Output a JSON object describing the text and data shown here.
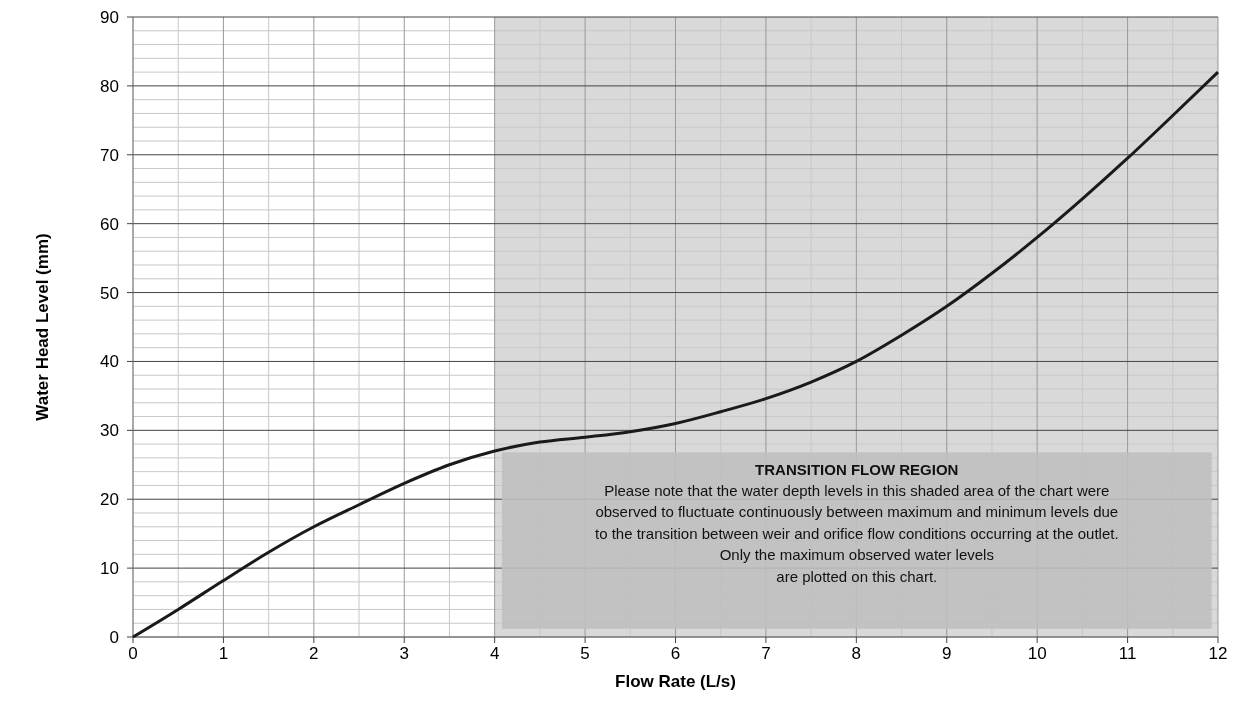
{
  "chart_data": {
    "type": "line",
    "xlabel": "Flow Rate (L/s)",
    "ylabel": "Water Head Level (mm)",
    "x": [
      0,
      0.5,
      1,
      1.5,
      2,
      2.5,
      3,
      3.5,
      4,
      4.5,
      5,
      5.5,
      6,
      6.5,
      7,
      7.5,
      8,
      8.5,
      9,
      9.5,
      10,
      10.5,
      11,
      11.5,
      12
    ],
    "series": [
      {
        "color": "#1a1a1a",
        "values": [
          0,
          4,
          8.2,
          12.3,
          16,
          19.2,
          22.3,
          25,
          27,
          28.3,
          29,
          29.8,
          31,
          32.7,
          34.6,
          37,
          40,
          43.8,
          48,
          52.8,
          58,
          63.6,
          69.5,
          75.7,
          82
        ]
      }
    ],
    "xlim": [
      0,
      12
    ],
    "xticks": [
      0,
      1,
      2,
      3,
      4,
      5,
      6,
      7,
      8,
      9,
      10,
      11,
      12
    ],
    "ylim": [
      0,
      90
    ],
    "yticks": [
      0,
      10,
      20,
      30,
      40,
      50,
      60,
      70,
      80,
      90
    ],
    "grid": true,
    "marker": "none",
    "line_style": "solid",
    "bands": [
      {
        "axis": "x",
        "from": 4,
        "to": 12,
        "color": "#d9d9d9"
      }
    ],
    "annotations": [
      "TRANSITION FLOW REGION",
      "Please note that the water depth levels in this shaded area of the chart were\nobserved to fluctuate continuously between maximum and minimum levels due\nto the transition between weir and orifice flow conditions occurring at the outlet.\nOnly the maximum observed  water levels\nare plotted on this chart."
    ]
  }
}
